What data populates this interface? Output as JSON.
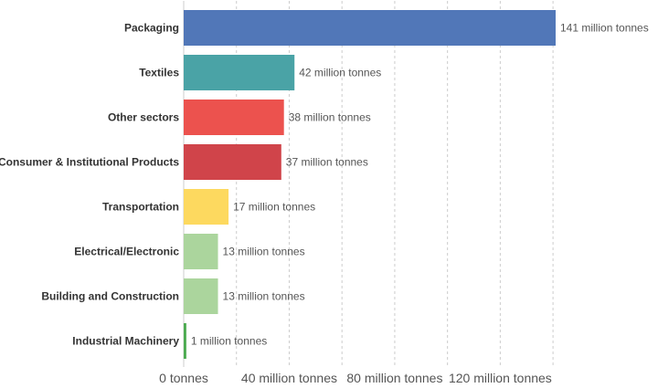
{
  "chart_data": {
    "type": "bar",
    "orientation": "horizontal",
    "categories": [
      "Packaging",
      "Textiles",
      "Other sectors",
      "Consumer & Institutional Products",
      "Transportation",
      "Electrical/Electronic",
      "Building and Construction",
      "Industrial Machinery"
    ],
    "values": [
      141,
      42,
      38,
      37,
      17,
      13,
      13,
      1
    ],
    "value_labels": [
      "141 million tonnes",
      "42 million tonnes",
      "38 million tonnes",
      "37 million tonnes",
      "17 million tonnes",
      "13 million tonnes",
      "13 million tonnes",
      "1 million tonnes"
    ],
    "colors": [
      "#5177b8",
      "#4aa3a6",
      "#ec524e",
      "#d0444a",
      "#fdd95f",
      "#abd59d",
      "#abd59d",
      "#4caa50"
    ],
    "xlim": [
      0,
      141
    ],
    "x_ticks": [
      0,
      40,
      80,
      120
    ],
    "x_tick_labels": [
      "0 tonnes",
      "40 million tonnes",
      "80 million tonnes",
      "120 million tonnes"
    ],
    "gridlines": [
      20,
      40,
      60,
      80,
      100,
      120,
      140
    ],
    "grid": true,
    "title": "",
    "xlabel": "",
    "ylabel": ""
  }
}
